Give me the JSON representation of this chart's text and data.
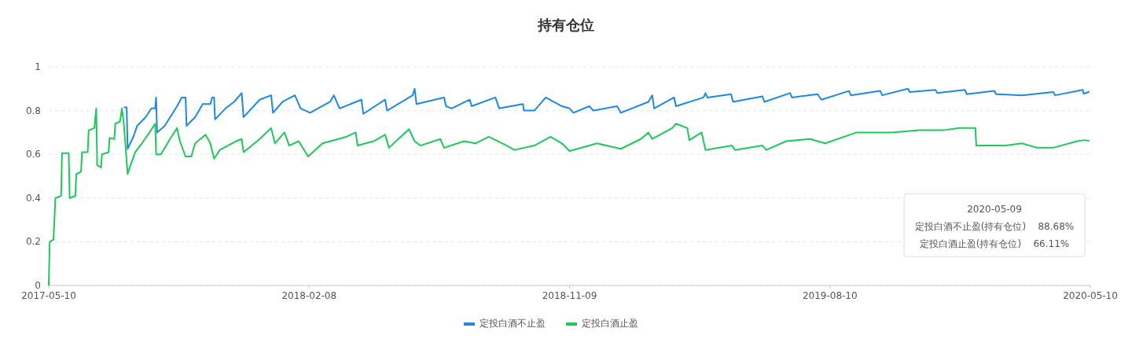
{
  "chart_data": {
    "type": "line",
    "title": "持有仓位",
    "xlim": [
      "2017-05-10",
      "2020-05-10"
    ],
    "xticks": [
      {
        "value": "2017-05-10",
        "label": "2017-05-10"
      },
      {
        "value": "2018-02-08",
        "label": "2018-02-08"
      },
      {
        "value": "2018-11-09",
        "label": "2018-11-09"
      },
      {
        "value": "2019-08-10",
        "label": "2019-08-10"
      },
      {
        "value": "2020-05-10",
        "label": "2020-05-10"
      }
    ],
    "ylim": [
      0,
      1
    ],
    "yticks": [
      0,
      0.2,
      0.4,
      0.6,
      0.8,
      1
    ],
    "grid": "y",
    "legend": "bottom",
    "marker": "none",
    "line_style": "solid",
    "annotations": [
      "2020-05-09",
      "定投白酒不止盈(持有仓位)    88.68%",
      "定投白酒止盈(持有仓位)    66.11%"
    ],
    "series": [
      {
        "name": "定投白酒不止盈",
        "color": "#1e88e5",
        "x": [
          "2017-07-28",
          "2017-07-31",
          "2017-08-01",
          "2017-08-07",
          "2017-08-11",
          "2017-08-20",
          "2017-08-26",
          "2017-08-30",
          "2017-08-31",
          "2017-09-01",
          "2017-09-09",
          "2017-09-22",
          "2017-09-27",
          "2017-10-01",
          "2017-10-02",
          "2017-10-11",
          "2017-10-19",
          "2017-10-27",
          "2017-10-29",
          "2017-10-31",
          "2017-11-01",
          "2017-11-12",
          "2017-11-21",
          "2017-11-29",
          "2017-12-01",
          "2017-12-18",
          "2017-12-30",
          "2018-01-01",
          "2018-01-11",
          "2018-01-24",
          "2018-01-30",
          "2018-02-09",
          "2018-03-02",
          "2018-03-06",
          "2018-03-12",
          "2018-04-04",
          "2018-04-06",
          "2018-04-29",
          "2018-05-01",
          "2018-05-28",
          "2018-05-30",
          "2018-06-01",
          "2018-06-30",
          "2018-07-02",
          "2018-07-08",
          "2018-07-27",
          "2018-07-29",
          "2018-08-23",
          "2018-08-27",
          "2018-09-21",
          "2018-09-22",
          "2018-10-03",
          "2018-10-15",
          "2018-11-01",
          "2018-11-09",
          "2018-11-13",
          "2018-11-30",
          "2018-12-04",
          "2018-12-29",
          "2019-01-02",
          "2019-01-31",
          "2019-02-04",
          "2019-02-06",
          "2019-02-27",
          "2019-03-01",
          "2019-03-30",
          "2019-04-01",
          "2019-04-03",
          "2019-04-28",
          "2019-04-30",
          "2019-05-31",
          "2019-06-02",
          "2019-06-29",
          "2019-07-01",
          "2019-07-28",
          "2019-08-01",
          "2019-08-30",
          "2019-09-01",
          "2019-10-02",
          "2019-10-04",
          "2019-10-31",
          "2019-11-02",
          "2019-11-29",
          "2019-12-01",
          "2019-12-30",
          "2020-01-01",
          "2020-01-30",
          "2020-02-01",
          "2020-02-28",
          "2020-04-01",
          "2020-04-03",
          "2020-05-02",
          "2020-05-03",
          "2020-05-09"
        ],
        "values": [
          0.815,
          0.815,
          0.625,
          0.68,
          0.73,
          0.77,
          0.81,
          0.81,
          0.86,
          0.7,
          0.73,
          0.82,
          0.86,
          0.86,
          0.73,
          0.77,
          0.83,
          0.83,
          0.86,
          0.86,
          0.76,
          0.81,
          0.84,
          0.88,
          0.77,
          0.85,
          0.87,
          0.79,
          0.84,
          0.87,
          0.81,
          0.79,
          0.84,
          0.87,
          0.81,
          0.85,
          0.785,
          0.85,
          0.8,
          0.87,
          0.9,
          0.83,
          0.86,
          0.82,
          0.81,
          0.85,
          0.82,
          0.86,
          0.81,
          0.83,
          0.8,
          0.8,
          0.86,
          0.82,
          0.81,
          0.79,
          0.82,
          0.8,
          0.82,
          0.79,
          0.84,
          0.87,
          0.81,
          0.86,
          0.82,
          0.86,
          0.88,
          0.86,
          0.875,
          0.84,
          0.865,
          0.84,
          0.88,
          0.86,
          0.875,
          0.85,
          0.89,
          0.87,
          0.89,
          0.87,
          0.9,
          0.885,
          0.895,
          0.88,
          0.895,
          0.875,
          0.89,
          0.875,
          0.87,
          0.885,
          0.87,
          0.895,
          0.877,
          0.8868
        ]
      },
      {
        "name": "定投白酒止盈",
        "color": "#1ec85a",
        "x": [
          "2017-05-10",
          "2017-05-11",
          "2017-05-15",
          "2017-05-17",
          "2017-05-23",
          "2017-05-24",
          "2017-05-31",
          "2017-06-01",
          "2017-06-07",
          "2017-06-08",
          "2017-06-13",
          "2017-06-14",
          "2017-06-20",
          "2017-06-21",
          "2017-06-27",
          "2017-06-29",
          "2017-06-30",
          "2017-07-04",
          "2017-07-05",
          "2017-07-12",
          "2017-07-13",
          "2017-07-18",
          "2017-07-19",
          "2017-07-24",
          "2017-07-26",
          "2017-07-28",
          "2017-08-01",
          "2017-08-04",
          "2017-08-09",
          "2017-08-16",
          "2017-08-24",
          "2017-08-30",
          "2017-08-31",
          "2017-09-05",
          "2017-09-16",
          "2017-09-22",
          "2017-09-25",
          "2017-10-01",
          "2017-10-07",
          "2017-10-11",
          "2017-10-22",
          "2017-10-27",
          "2017-10-31",
          "2017-11-06",
          "2017-11-23",
          "2017-11-29",
          "2017-12-01",
          "2017-12-18",
          "2017-12-30",
          "2018-01-03",
          "2018-01-13",
          "2018-01-18",
          "2018-01-28",
          "2018-02-07",
          "2018-02-22",
          "2018-03-19",
          "2018-03-29",
          "2018-03-31",
          "2018-04-17",
          "2018-04-29",
          "2018-05-03",
          "2018-05-24",
          "2018-05-30",
          "2018-06-05",
          "2018-06-26",
          "2018-06-30",
          "2018-07-21",
          "2018-08-02",
          "2018-08-16",
          "2018-09-04",
          "2018-09-12",
          "2018-10-03",
          "2018-10-20",
          "2018-11-01",
          "2018-11-09",
          "2018-11-30",
          "2018-12-08",
          "2019-01-02",
          "2019-01-23",
          "2019-01-31",
          "2019-02-04",
          "2019-02-25",
          "2019-03-01",
          "2019-03-13",
          "2019-03-15",
          "2019-03-28",
          "2019-04-01",
          "2019-04-29",
          "2019-05-02",
          "2019-05-31",
          "2019-06-04",
          "2019-06-25",
          "2019-07-20",
          "2019-08-05",
          "2019-09-07",
          "2019-10-14",
          "2019-11-12",
          "2019-12-07",
          "2019-12-24",
          "2020-01-10",
          "2020-01-11",
          "2020-02-11",
          "2020-02-28",
          "2020-03-15",
          "2020-04-01",
          "2020-04-26",
          "2020-05-04",
          "2020-05-09"
        ],
        "values": [
          0,
          0.2,
          0.21,
          0.4,
          0.41,
          0.605,
          0.605,
          0.4,
          0.41,
          0.51,
          0.52,
          0.61,
          0.61,
          0.71,
          0.72,
          0.81,
          0.55,
          0.54,
          0.6,
          0.61,
          0.675,
          0.67,
          0.74,
          0.75,
          0.81,
          0.74,
          0.51,
          0.55,
          0.61,
          0.65,
          0.7,
          0.74,
          0.6,
          0.6,
          0.68,
          0.72,
          0.66,
          0.59,
          0.59,
          0.65,
          0.69,
          0.65,
          0.58,
          0.62,
          0.66,
          0.67,
          0.61,
          0.67,
          0.72,
          0.65,
          0.7,
          0.64,
          0.66,
          0.59,
          0.65,
          0.68,
          0.7,
          0.64,
          0.66,
          0.69,
          0.63,
          0.715,
          0.66,
          0.64,
          0.67,
          0.63,
          0.66,
          0.65,
          0.68,
          0.64,
          0.62,
          0.64,
          0.68,
          0.65,
          0.615,
          0.64,
          0.65,
          0.625,
          0.67,
          0.7,
          0.67,
          0.72,
          0.74,
          0.72,
          0.665,
          0.7,
          0.62,
          0.64,
          0.62,
          0.64,
          0.62,
          0.66,
          0.67,
          0.65,
          0.7,
          0.7,
          0.71,
          0.71,
          0.72,
          0.72,
          0.64,
          0.64,
          0.65,
          0.63,
          0.63,
          0.66,
          0.665,
          0.6611
        ]
      }
    ]
  }
}
